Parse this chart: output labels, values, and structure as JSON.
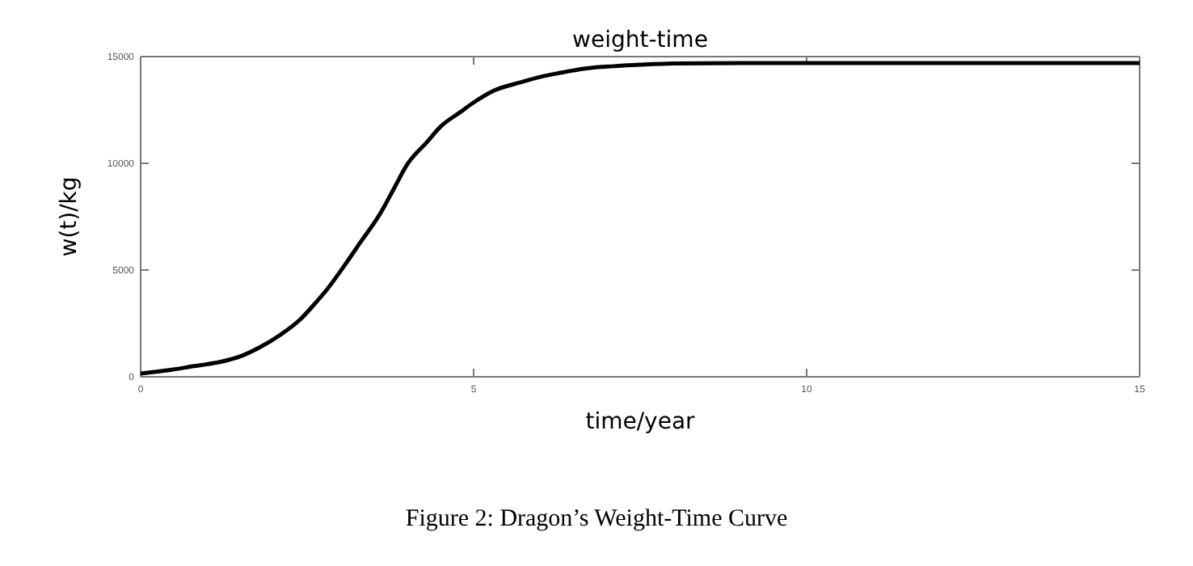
{
  "chart_data": {
    "type": "line",
    "title": "weight-time",
    "xlabel": "time/year",
    "ylabel": "w(t)/kg",
    "annotations": [
      "Figure 2: Dragon’s Weight-Time Curve"
    ],
    "x": [
      0,
      0.4,
      0.8,
      1.2,
      1.5,
      1.8,
      2.1,
      2.4,
      2.6,
      2.8,
      3.1,
      3.3,
      3.6,
      3.8,
      4.0,
      4.3,
      4.5,
      4.8,
      5.0,
      5.3,
      5.7,
      6.0,
      6.3,
      6.7,
      7.1,
      7.5,
      8,
      9,
      10,
      12,
      15
    ],
    "series": [
      {
        "color": "#000000",
        "values": [
          150,
          300,
          500,
          700,
          960,
          1400,
          1970,
          2700,
          3370,
          4100,
          5390,
          6300,
          7660,
          8800,
          9940,
          11000,
          11710,
          12400,
          12850,
          13400,
          13790,
          14050,
          14240,
          14450,
          14550,
          14620,
          14680,
          14700,
          14700,
          14700,
          14700
        ]
      }
    ],
    "xlim": [
      0,
      15
    ],
    "ylim": [
      0,
      15000
    ],
    "xticks": [
      0,
      5,
      10,
      15
    ],
    "yticks": [
      0,
      5000,
      10000,
      15000
    ],
    "grid": false,
    "marker": "none",
    "line_style": "solid"
  }
}
